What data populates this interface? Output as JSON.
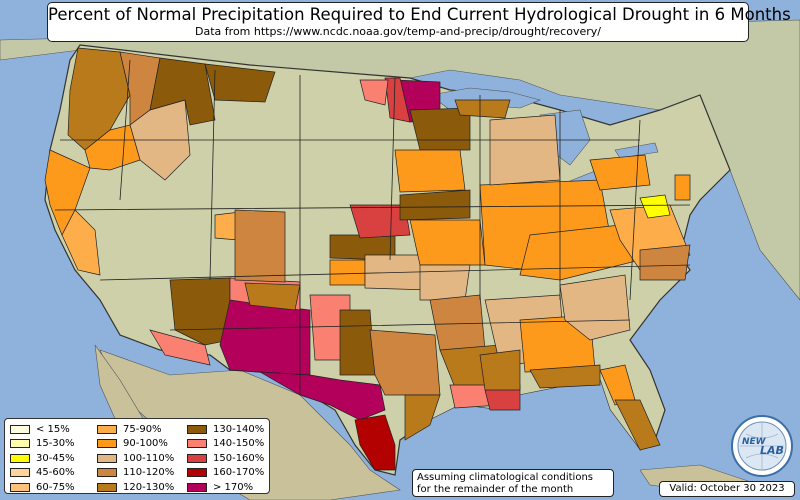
{
  "title": "Percent of Normal Precipitation Required to End Current Hydrological Drought in 6 Months",
  "subtitle": "Data from https://www.ncdc.noaa.gov/temp-and-precip/drought/recovery/",
  "note": [
    "Assuming climatological conditions",
    "for the remainder of the month"
  ],
  "valid": "Valid: October 30 2023",
  "logo_text": {
    "left": "NEW",
    "right": "LAB"
  },
  "colors": {
    "ocean": "#8fb2dc",
    "land": "#c6c9a2",
    "border": "#111111"
  },
  "legend": [
    {
      "label": "< 15%",
      "color": "#fffde0"
    },
    {
      "label": "15-30%",
      "color": "#ffffb0"
    },
    {
      "label": "30-45%",
      "color": "#ffff00"
    },
    {
      "label": "45-60%",
      "color": "#fdd59a"
    },
    {
      "label": "60-75%",
      "color": "#fcc27a"
    },
    {
      "label": "75-90%",
      "color": "#fdae4a"
    },
    {
      "label": "90-100%",
      "color": "#fd9a1c"
    },
    {
      "label": "100-110%",
      "color": "#e2b784"
    },
    {
      "label": "110-120%",
      "color": "#cd853f"
    },
    {
      "label": "120-130%",
      "color": "#b87a1a"
    },
    {
      "label": "130-140%",
      "color": "#8b5a0a"
    },
    {
      "label": "140-150%",
      "color": "#fa8072"
    },
    {
      "label": "150-160%",
      "color": "#d94040"
    },
    {
      "label": "160-170%",
      "color": "#b30000"
    },
    {
      "label": "> 170%",
      "color": "#b3005a"
    }
  ]
}
